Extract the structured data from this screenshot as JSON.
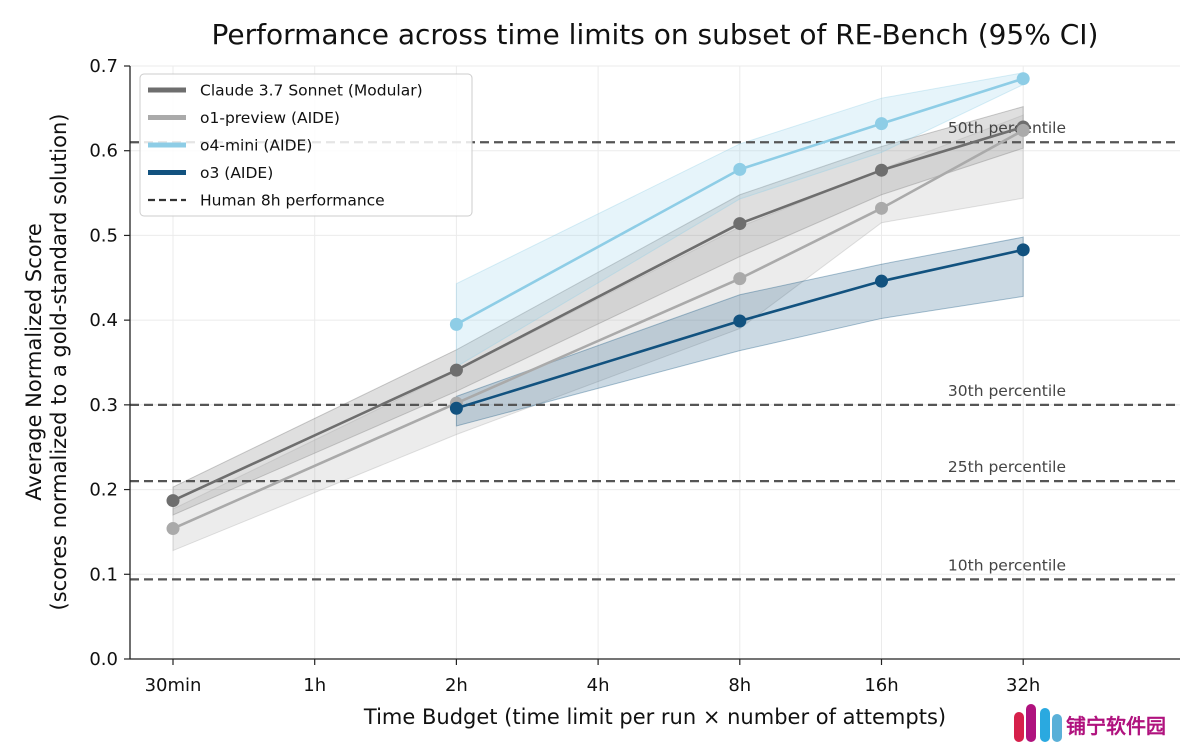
{
  "chart_data": {
    "type": "line",
    "title": "Performance across time limits on subset of RE-Bench (95% CI)",
    "xlabel": "Time Budget (time limit per run × number of attempts)",
    "ylabel": "Average Normalized Score",
    "ylabel2": "(scores normalized to a gold-standard solution)",
    "x_categories": [
      "30min",
      "1h",
      "2h",
      "4h",
      "8h",
      "16h",
      "32h"
    ],
    "ylim": [
      0,
      0.7
    ],
    "y_ticks": [
      "0.0",
      "0.1",
      "0.2",
      "0.3",
      "0.4",
      "0.5",
      "0.6",
      "0.7"
    ],
    "grid": true,
    "legend_position": "top-left",
    "series": [
      {
        "name": "Claude 3.7 Sonnet (Modular)",
        "color": "#6e6e6e",
        "x": [
          "30min",
          "2h",
          "8h",
          "16h",
          "32h"
        ],
        "y": [
          0.187,
          0.341,
          0.514,
          0.577,
          0.628
        ],
        "ci_low": [
          0.17,
          0.316,
          0.475,
          0.548,
          0.603
        ],
        "ci_high": [
          0.203,
          0.365,
          0.548,
          0.605,
          0.652
        ]
      },
      {
        "name": "o1-preview (AIDE)",
        "color": "#aaaaaa",
        "x": [
          "30min",
          "2h",
          "8h",
          "16h",
          "32h"
        ],
        "y": [
          0.154,
          0.302,
          0.449,
          0.532,
          0.624
        ],
        "ci_low": [
          0.128,
          0.265,
          0.39,
          0.515,
          0.544
        ],
        "ci_high": [
          0.177,
          0.34,
          0.51,
          0.578,
          0.642
        ]
      },
      {
        "name": "o4-mini (AIDE)",
        "color": "#8ecde6",
        "x": [
          "2h",
          "8h",
          "16h",
          "32h"
        ],
        "y": [
          0.395,
          0.578,
          0.632,
          0.685
        ],
        "ci_low": [
          0.345,
          0.543,
          0.598,
          0.678
        ],
        "ci_high": [
          0.443,
          0.608,
          0.662,
          0.692
        ]
      },
      {
        "name": "o3 (AIDE)",
        "color": "#12527f",
        "x": [
          "2h",
          "8h",
          "16h",
          "32h"
        ],
        "y": [
          0.296,
          0.399,
          0.446,
          0.483
        ],
        "ci_low": [
          0.275,
          0.364,
          0.402,
          0.428
        ],
        "ci_high": [
          0.31,
          0.43,
          0.466,
          0.498
        ]
      }
    ],
    "reference_lines": [
      {
        "label": "50th percentile",
        "y": 0.61
      },
      {
        "label": "30th percentile",
        "y": 0.3
      },
      {
        "label": "25th percentile",
        "y": 0.21
      },
      {
        "label": "10th percentile",
        "y": 0.094
      }
    ],
    "reference_legend_label": "Human 8h performance"
  },
  "watermark": {
    "text": "铺宁软件园",
    "bar_colors": [
      "#d6204b",
      "#b0127e",
      "#2aa9e0",
      "#5ab0d8"
    ]
  }
}
